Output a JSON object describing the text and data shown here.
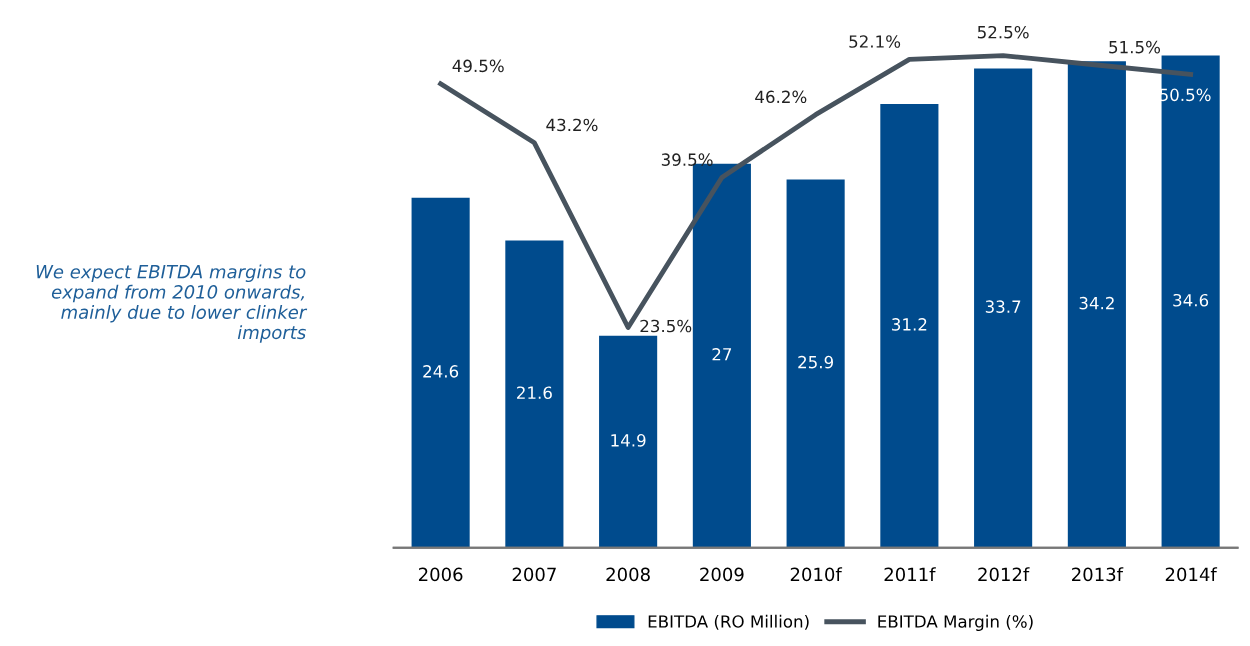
{
  "chart_data": {
    "type": "bar",
    "categories": [
      "2006",
      "2007",
      "2008",
      "2009",
      "2010f",
      "2011f",
      "2012f",
      "2013f",
      "2014f"
    ],
    "series": [
      {
        "name": "EBITDA (RO Million)",
        "color": "#004b8d",
        "values": [
          24.6,
          21.6,
          14.9,
          27,
          25.9,
          31.2,
          33.7,
          34.2,
          34.6
        ]
      },
      {
        "name": "EBITDA Margin (%)",
        "type": "line",
        "axis": "y2",
        "color": "#47535e",
        "values": [
          49.5,
          43.2,
          23.5,
          39.5,
          46.2,
          52.1,
          52.5,
          51.5,
          50.5
        ],
        "value_labels": [
          "49.5%",
          "43.2%",
          "23.5%",
          "39.5%",
          "46.2%",
          "52.1%",
          "52.5%",
          "51.5%",
          "50.5%"
        ]
      }
    ],
    "data_labels": true,
    "tick_labels": "x",
    "grid": false,
    "legend": "bottom",
    "marker": "none",
    "line_style": "solid",
    "annotations": [
      "We expect EBITDA margins to expand from 2010 onwards, mainly due to lower clinker imports"
    ]
  }
}
